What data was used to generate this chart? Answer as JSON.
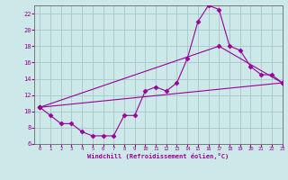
{
  "background_color": "#cce8e8",
  "grid_color": "#aacccc",
  "line_color": "#990099",
  "xlabel": "Windchill (Refroidissement éolien,°C)",
  "xlim": [
    -0.5,
    23
  ],
  "ylim": [
    6,
    23
  ],
  "yticks": [
    6,
    8,
    10,
    12,
    14,
    16,
    18,
    20,
    22
  ],
  "xticks": [
    0,
    1,
    2,
    3,
    4,
    5,
    6,
    7,
    8,
    9,
    10,
    11,
    12,
    13,
    14,
    15,
    16,
    17,
    18,
    19,
    20,
    21,
    22,
    23
  ],
  "line1_x": [
    0,
    1,
    2,
    3,
    4,
    5,
    6,
    7,
    8,
    9,
    10,
    11,
    12,
    13,
    14,
    15,
    16,
    17,
    18,
    19,
    20,
    21,
    22,
    23
  ],
  "line1_y": [
    10.5,
    9.5,
    8.5,
    8.5,
    7.5,
    7.0,
    7.0,
    7.0,
    9.5,
    9.5,
    12.5,
    13.0,
    12.5,
    13.5,
    16.5,
    21.0,
    23.0,
    22.5,
    18.0,
    17.5,
    15.5,
    14.5,
    14.5,
    13.5
  ],
  "line2_x": [
    0,
    23
  ],
  "line2_y": [
    10.5,
    13.5
  ],
  "line3_x": [
    0,
    17,
    23
  ],
  "line3_y": [
    10.5,
    18.0,
    13.5
  ]
}
